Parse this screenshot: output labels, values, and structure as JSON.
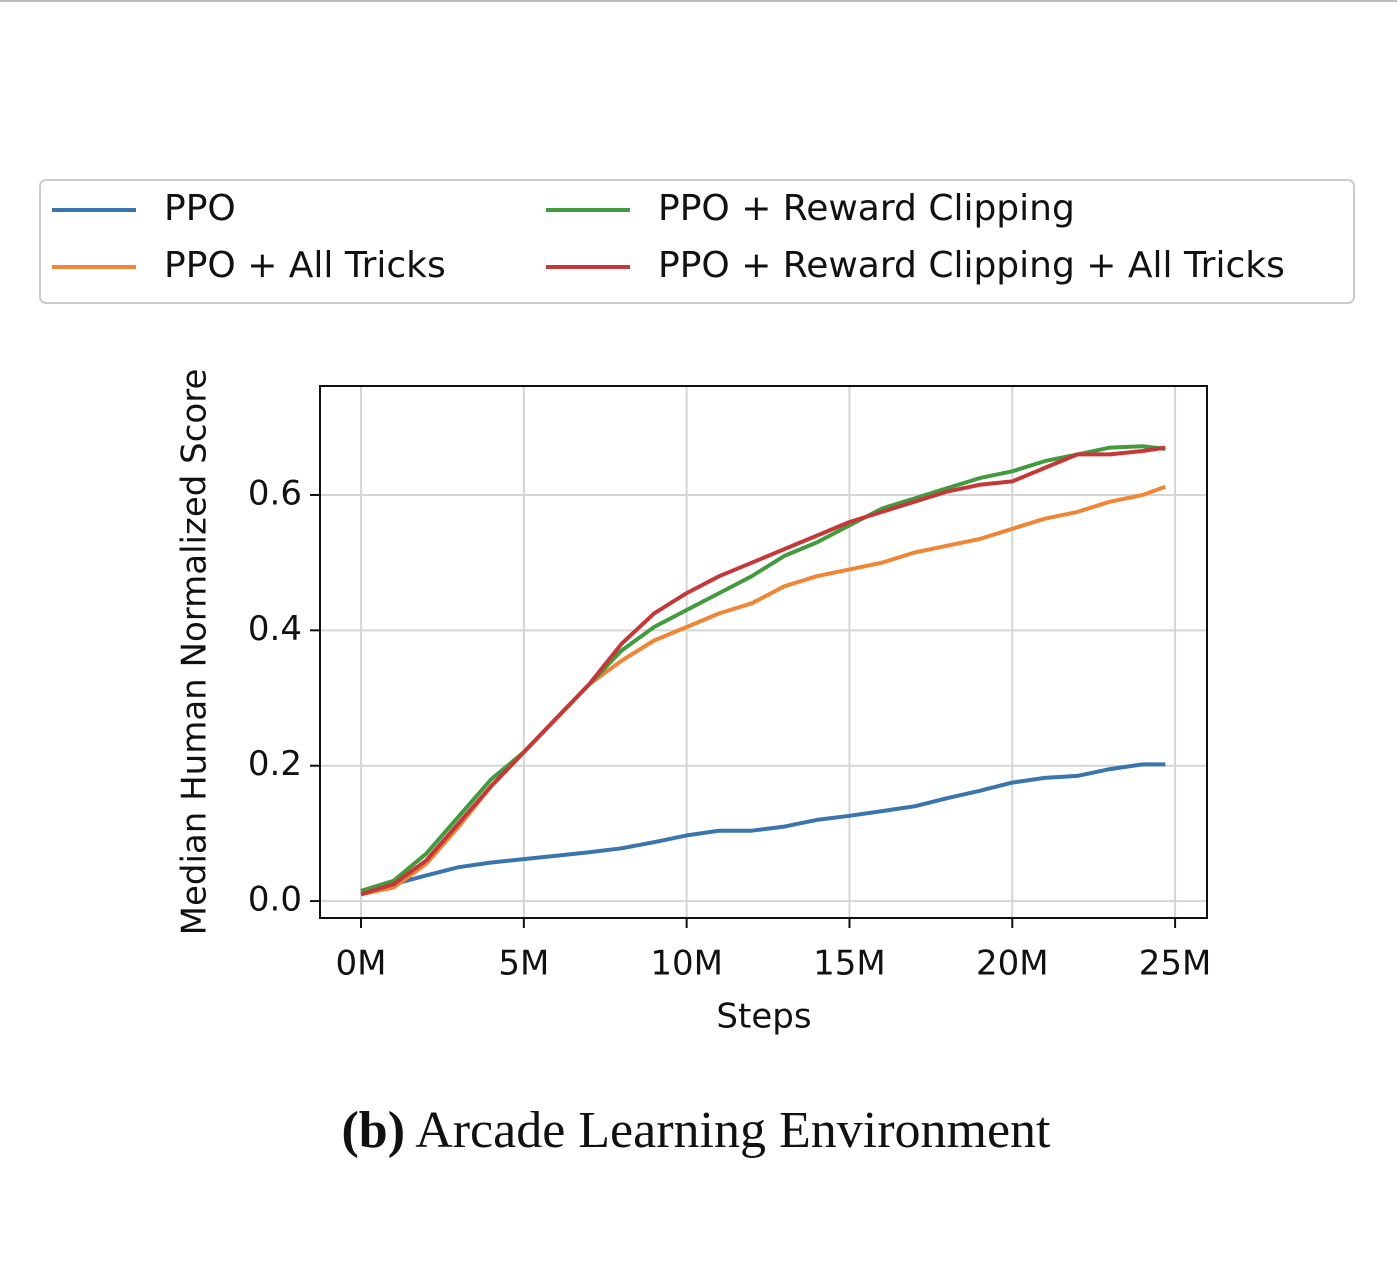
{
  "chart_data": {
    "type": "line",
    "caption_label": "(b)",
    "caption": "Arcade Learning Environment",
    "xlabel": "Steps",
    "ylabel": "Median Human Normalized Score",
    "x": [
      0,
      1000000,
      2000000,
      3000000,
      4000000,
      5000000,
      6000000,
      7000000,
      8000000,
      9000000,
      10000000,
      11000000,
      12000000,
      13000000,
      14000000,
      15000000,
      16000000,
      17000000,
      18000000,
      19000000,
      20000000,
      21000000,
      22000000,
      23000000,
      24000000,
      24700000
    ],
    "series": [
      {
        "name": "PPO",
        "color": "#3a75ad",
        "values": [
          0.015,
          0.025,
          0.038,
          0.05,
          0.057,
          0.062,
          0.067,
          0.072,
          0.078,
          0.087,
          0.097,
          0.104,
          0.104,
          0.11,
          0.12,
          0.126,
          0.133,
          0.14,
          0.152,
          0.163,
          0.175,
          0.182,
          0.185,
          0.195,
          0.202,
          0.202
        ]
      },
      {
        "name": "PPO + All Tricks",
        "color": "#ef8636",
        "values": [
          0.01,
          0.02,
          0.055,
          0.11,
          0.17,
          0.22,
          0.27,
          0.32,
          0.355,
          0.385,
          0.405,
          0.425,
          0.44,
          0.465,
          0.48,
          0.49,
          0.5,
          0.515,
          0.525,
          0.535,
          0.55,
          0.565,
          0.575,
          0.59,
          0.6,
          0.612
        ]
      },
      {
        "name": "PPO + Reward Clipping",
        "color": "#449a3f",
        "values": [
          0.015,
          0.03,
          0.07,
          0.125,
          0.18,
          0.22,
          0.27,
          0.32,
          0.37,
          0.405,
          0.43,
          0.455,
          0.48,
          0.51,
          0.53,
          0.555,
          0.58,
          0.595,
          0.61,
          0.625,
          0.635,
          0.65,
          0.66,
          0.67,
          0.672,
          0.668
        ]
      },
      {
        "name": "PPO + Reward Clipping + All Tricks",
        "color": "#c5383a",
        "values": [
          0.01,
          0.025,
          0.06,
          0.115,
          0.17,
          0.22,
          0.27,
          0.32,
          0.38,
          0.425,
          0.455,
          0.48,
          0.5,
          0.52,
          0.54,
          0.56,
          0.575,
          0.59,
          0.605,
          0.615,
          0.62,
          0.64,
          0.66,
          0.66,
          0.665,
          0.67
        ]
      }
    ],
    "xlim": [
      -1260000,
      25980000
    ],
    "xticks": [
      {
        "value": 0,
        "label": "0M"
      },
      {
        "value": 5000000,
        "label": "5M"
      },
      {
        "value": 10000000,
        "label": "10M"
      },
      {
        "value": 15000000,
        "label": "15M"
      },
      {
        "value": 20000000,
        "label": "20M"
      },
      {
        "value": 25000000,
        "label": "25M"
      }
    ],
    "ylim": [
      -0.025,
      0.761
    ],
    "yticks": [
      {
        "value": 0,
        "label": "0.0"
      },
      0.2,
      0.4,
      0.6
    ],
    "grid": true,
    "legend": "top"
  }
}
